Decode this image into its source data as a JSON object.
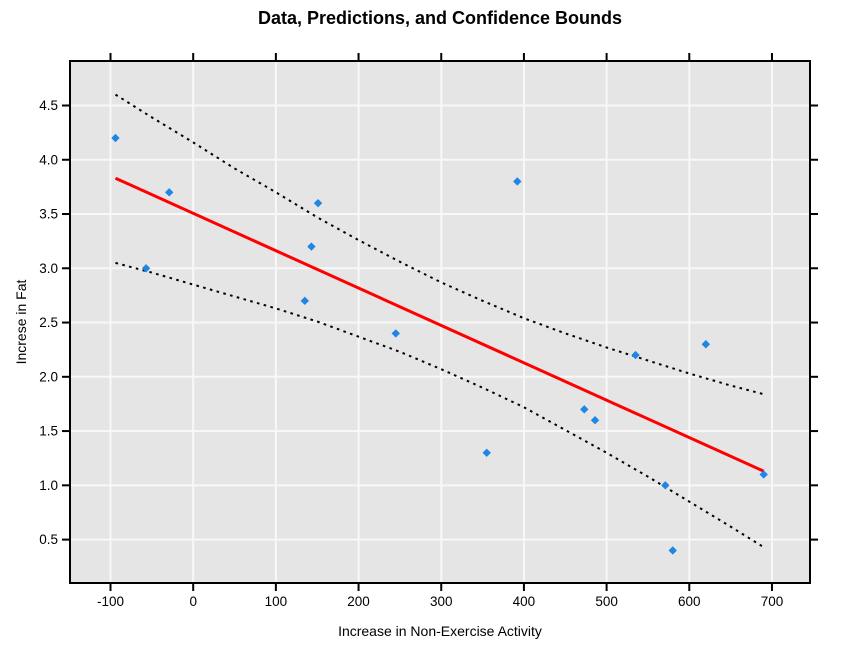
{
  "chart_data": {
    "type": "scatter",
    "title": "Data, Predictions, and Confidence Bounds",
    "xlabel": "Increase in Non-Exercise Activity",
    "ylabel": "Increse in Fat",
    "xlim": [
      -149,
      746
    ],
    "ylim": [
      0.1,
      4.91
    ],
    "x_ticks": [
      -100,
      0,
      100,
      200,
      300,
      400,
      500,
      600,
      700
    ],
    "y_ticks": [
      0.5,
      1.0,
      1.5,
      2.0,
      2.5,
      3.0,
      3.5,
      4.0,
      4.5
    ],
    "grid": true,
    "legend_position": "none",
    "series": [
      {
        "name": "observed-data",
        "kind": "scatter",
        "marker": "diamond",
        "color": "#1E86E5",
        "x": [
          -94,
          -57,
          -29,
          135,
          143,
          151,
          245,
          355,
          392,
          473,
          486,
          535,
          571,
          580,
          620,
          690
        ],
        "y": [
          4.2,
          3.0,
          3.7,
          2.7,
          3.2,
          3.6,
          2.4,
          1.3,
          3.8,
          1.7,
          1.6,
          2.2,
          1.0,
          0.4,
          2.3,
          1.1
        ]
      },
      {
        "name": "regression-prediction-line",
        "kind": "line",
        "style": "solid",
        "color": "#FF0000",
        "width": 3,
        "x": [
          -94,
          690
        ],
        "y": [
          3.83,
          1.13
        ]
      },
      {
        "name": "upper-confidence-bound",
        "kind": "line",
        "style": "dotted",
        "color": "#000000",
        "width": 2,
        "x": [
          -94,
          -50,
          0,
          50,
          100,
          150,
          200,
          250,
          300,
          350,
          400,
          450,
          500,
          550,
          600,
          650,
          690
        ],
        "y": [
          4.6,
          4.39,
          4.16,
          3.92,
          3.7,
          3.47,
          3.26,
          3.06,
          2.87,
          2.7,
          2.54,
          2.4,
          2.27,
          2.15,
          2.03,
          1.92,
          1.84
        ]
      },
      {
        "name": "lower-confidence-bound",
        "kind": "line",
        "style": "dotted",
        "color": "#000000",
        "width": 2,
        "x": [
          -94,
          -50,
          0,
          50,
          100,
          150,
          200,
          250,
          300,
          350,
          400,
          450,
          500,
          550,
          600,
          650,
          690
        ],
        "y": [
          3.05,
          2.96,
          2.85,
          2.74,
          2.63,
          2.51,
          2.37,
          2.23,
          2.07,
          1.9,
          1.72,
          1.51,
          1.3,
          1.08,
          0.85,
          0.62,
          0.43
        ]
      }
    ],
    "colors": {
      "plot_background": "#E5E5E5",
      "grid_line": "#F8F8F8",
      "axis": "#000000",
      "point": "#1E86E5",
      "regression_line": "#FF0000",
      "confidence_bound": "#000000"
    }
  }
}
